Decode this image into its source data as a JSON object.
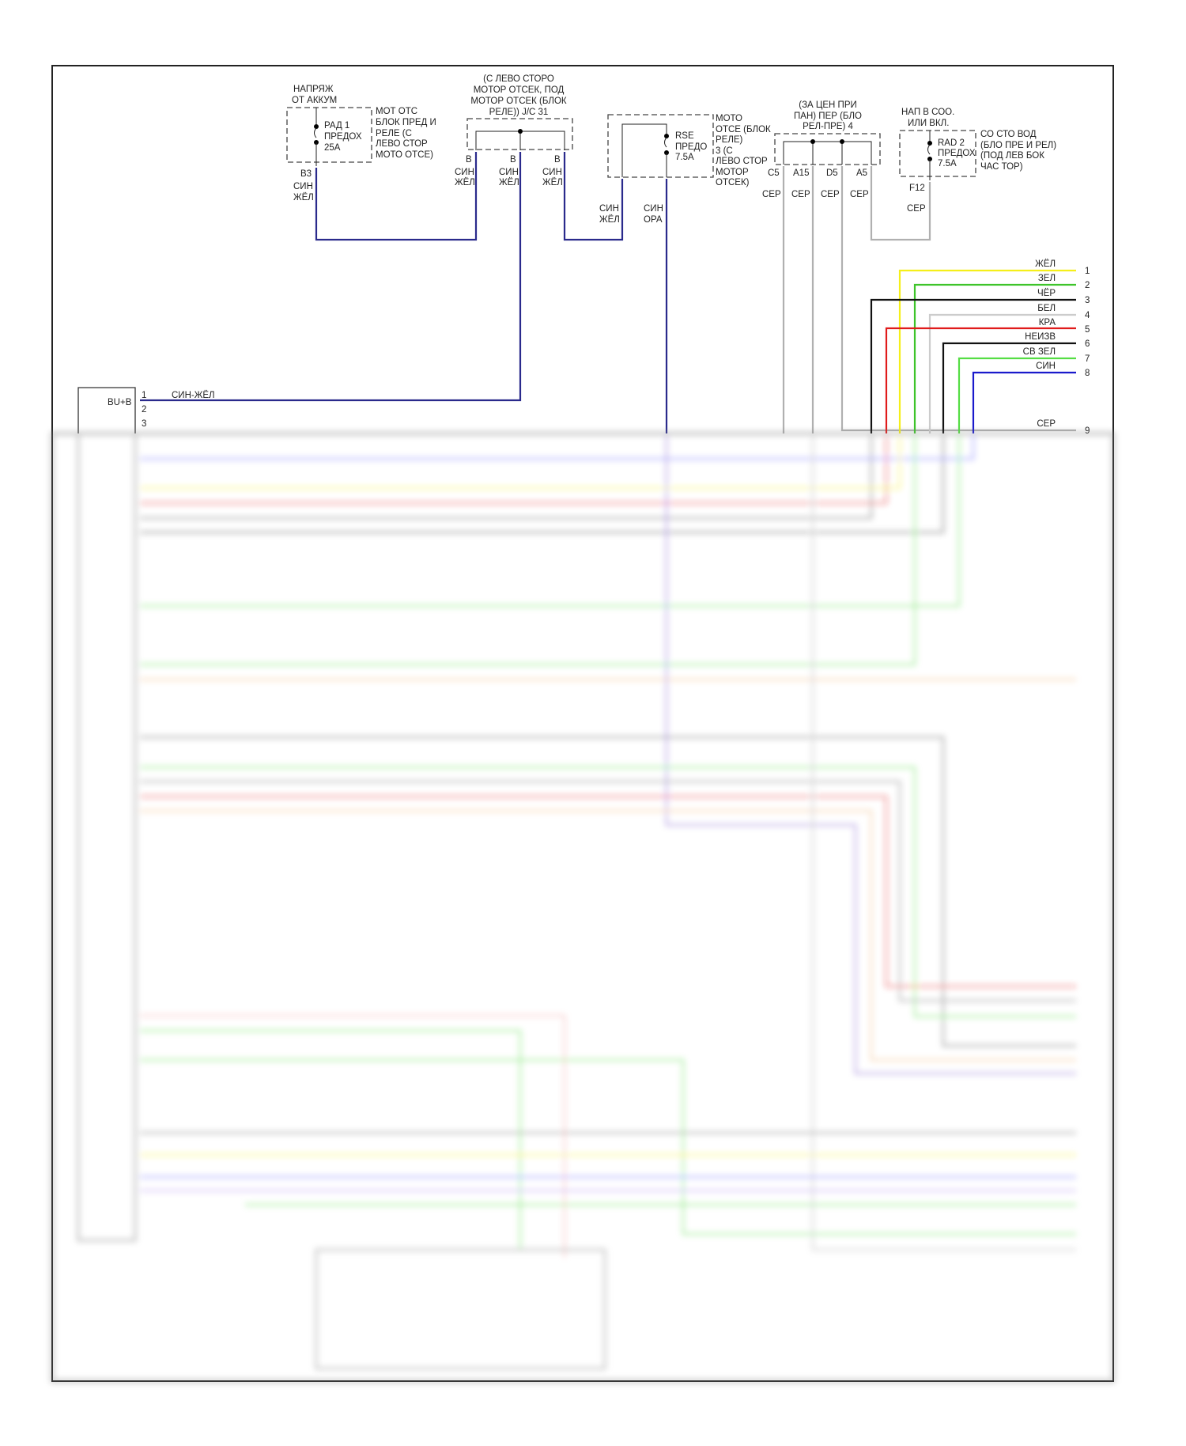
{
  "top_left": {
    "source": [
      "НАПРЯЖ",
      "ОТ АККУМ"
    ],
    "fuse": [
      "РАД 1",
      "ПРЕДОХ",
      "25А"
    ],
    "location": [
      "МОТ ОТС",
      "БЛОК ПРЕД И",
      "РЕЛЕ (С",
      "ЛЕВО СТОР",
      "МОТО ОТСЕ)"
    ],
    "pin": "B3",
    "wire": [
      "СИН",
      "ЖЁЛ"
    ]
  },
  "jc31": {
    "title": [
      "(С ЛЕВО СТОРО",
      "МОТОР ОТСЕК, ПОД",
      "МОТОР ОТСЕК (БЛОК",
      "РЕЛЕ)) J/C 31"
    ],
    "pins": [
      "B",
      "B",
      "B"
    ],
    "wire": [
      "СИН",
      "ЖЁЛ"
    ]
  },
  "rse_fuse": {
    "fuse": [
      "RSE",
      "ПРЕДО",
      "7.5A"
    ],
    "location": [
      "МОТО",
      "ОТСЕ (БЛОК",
      "РЕЛЕ)",
      "3 (С",
      "ЛЕВО СТОР",
      "МОТОР",
      "ОТСЕК)"
    ],
    "wires": [
      [
        "СИН",
        "ЖЁЛ"
      ],
      [
        "СИН",
        "ОРА"
      ]
    ]
  },
  "jb4": {
    "title": [
      "(ЗА ЦЕН ПРИ",
      "ПАН) ПЕР (БЛО",
      "РЕЛ-ПРЕ) 4"
    ],
    "pins": [
      "C5",
      "A15",
      "D5",
      "A5"
    ],
    "wire": "СЕР"
  },
  "rad2": {
    "source": [
      "НАП В СОО.",
      "ИЛИ ВКЛ."
    ],
    "fuse": [
      "RAD 2",
      "ПРЕДОХ",
      "7.5A"
    ],
    "location": [
      "СО СТО ВОД",
      "(БЛО ПРЕ И РЕЛ)",
      "(ПОД ЛЕВ БОК",
      "ЧАС ТОР)"
    ],
    "pin": "F12",
    "wire": "СЕР"
  },
  "right_connector": [
    {
      "label": "ЖЁЛ",
      "pin": "1",
      "color": "#f5ef1a"
    },
    {
      "label": "ЗЕЛ",
      "pin": "2",
      "color": "#3ec42a"
    },
    {
      "label": "ЧЁР",
      "pin": "3",
      "color": "#111111"
    },
    {
      "label": "БЕЛ",
      "pin": "4",
      "color": "#cccccc"
    },
    {
      "label": "КРА",
      "pin": "5",
      "color": "#e01b1b"
    },
    {
      "label": "НЕИЗВ",
      "pin": "6",
      "color": "#111111"
    },
    {
      "label": "СВ ЗЕЛ",
      "pin": "7",
      "color": "#55dd44"
    },
    {
      "label": "СИН",
      "pin": "8",
      "color": "#1a1acc"
    },
    {
      "label": "СЕР",
      "pin": "9",
      "color": "#aaaaaa"
    }
  ],
  "radio": {
    "terminal": "BU+B",
    "pins": [
      "1",
      "2",
      "3"
    ],
    "wire": "СИН-ЖЁЛ"
  },
  "colors": {
    "blue_yellow": "#2a2a8c",
    "grey": "#b0b0b0",
    "frame": "#222222"
  }
}
